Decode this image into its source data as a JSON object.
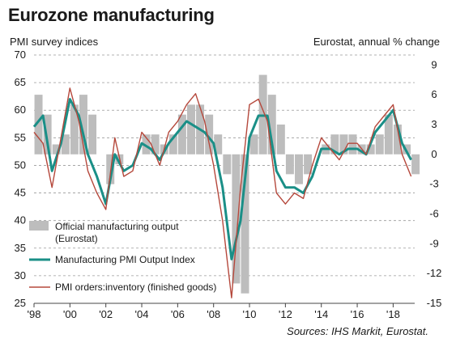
{
  "header": {
    "title": "Eurozone manufacturing",
    "left_axis_title": "PMI survey indices",
    "right_axis_title": "Eurostat, annual % change",
    "source": "Sources: IHS Markit, Eurostat."
  },
  "chart_data": {
    "type": "line",
    "x_range": [
      1998.0,
      2019.2
    ],
    "x_ticks": [
      "'98",
      "'00",
      "'02",
      "'04",
      "'06",
      "'08",
      "'10",
      "'12",
      "'14",
      "'16",
      "'18"
    ],
    "x_tick_values": [
      1998,
      2000,
      2002,
      2004,
      2006,
      2008,
      2010,
      2012,
      2014,
      2016,
      2018
    ],
    "y_left": {
      "ylim": [
        25,
        70
      ],
      "ticks": [
        25,
        30,
        35,
        40,
        45,
        50,
        55,
        60,
        65,
        70
      ]
    },
    "y_right": {
      "ylim": [
        -15,
        10
      ],
      "ticks": [
        -15,
        -12,
        -9,
        -6,
        -3,
        0,
        3,
        6,
        9
      ]
    },
    "grid": "horizontal, dashed",
    "legend_placement": "lower-left",
    "series": [
      {
        "name": "Official manufacturing output (Eurostat)",
        "style": "bar",
        "axis": "right",
        "color": "#bdbdbd",
        "x": [
          1998.0,
          1998.5,
          1999.0,
          1999.5,
          2000.0,
          2000.5,
          2001.0,
          2001.5,
          2002.0,
          2002.5,
          2003.0,
          2003.5,
          2004.0,
          2004.5,
          2005.0,
          2005.5,
          2006.0,
          2006.5,
          2007.0,
          2007.5,
          2008.0,
          2008.5,
          2009.0,
          2009.5,
          2010.0,
          2010.5,
          2011.0,
          2011.5,
          2012.0,
          2012.5,
          2013.0,
          2013.5,
          2014.0,
          2014.5,
          2015.0,
          2015.5,
          2016.0,
          2016.5,
          2017.0,
          2017.5,
          2018.0,
          2018.5,
          2019.0
        ],
        "values": [
          6,
          4,
          1,
          2,
          5,
          6,
          4,
          0,
          -3,
          -1,
          0,
          0,
          2,
          2,
          1,
          2,
          4,
          5,
          5,
          4,
          2,
          -2,
          -13,
          -14,
          2,
          8,
          6,
          3,
          -2,
          -3,
          -2,
          0,
          1,
          2,
          2,
          2,
          1,
          1,
          2,
          4,
          3,
          1,
          -2
        ]
      },
      {
        "name": "Manufacturing PMI Output Index",
        "style": "line",
        "axis": "left",
        "color": "#1a8f87",
        "x": [
          1998.0,
          1998.5,
          1999.0,
          1999.5,
          2000.0,
          2000.5,
          2001.0,
          2001.5,
          2002.0,
          2002.5,
          2003.0,
          2003.5,
          2004.0,
          2004.5,
          2005.0,
          2005.5,
          2006.0,
          2006.5,
          2007.0,
          2007.5,
          2008.0,
          2008.5,
          2009.0,
          2009.5,
          2010.0,
          2010.5,
          2011.0,
          2011.5,
          2012.0,
          2012.5,
          2013.0,
          2013.5,
          2014.0,
          2014.5,
          2015.0,
          2015.5,
          2016.0,
          2016.5,
          2017.0,
          2017.5,
          2018.0,
          2018.5,
          2019.0
        ],
        "values": [
          57,
          59,
          49,
          54,
          62,
          59,
          52,
          48,
          43,
          52,
          49,
          50,
          54,
          53,
          51,
          54,
          56,
          58,
          57,
          56,
          54,
          46,
          33,
          40,
          55,
          59,
          59,
          49,
          46,
          46,
          45,
          48,
          53,
          53,
          52,
          53,
          53,
          52,
          56,
          58,
          60,
          54,
          51
        ]
      },
      {
        "name": "PMI orders:inventory (finished goods)",
        "style": "line",
        "axis": "left",
        "color": "#b5483c",
        "x": [
          1998.0,
          1998.5,
          1999.0,
          1999.5,
          2000.0,
          2000.5,
          2001.0,
          2001.5,
          2002.0,
          2002.5,
          2003.0,
          2003.5,
          2004.0,
          2004.5,
          2005.0,
          2005.5,
          2006.0,
          2006.5,
          2007.0,
          2007.5,
          2008.0,
          2008.5,
          2009.0,
          2009.5,
          2010.0,
          2010.5,
          2011.0,
          2011.5,
          2012.0,
          2012.5,
          2013.0,
          2013.5,
          2014.0,
          2014.5,
          2015.0,
          2015.5,
          2016.0,
          2016.5,
          2017.0,
          2017.5,
          2018.0,
          2018.5,
          2019.0
        ],
        "values": [
          56,
          54,
          46,
          55,
          64,
          58,
          49,
          45,
          42,
          55,
          48,
          49,
          56,
          54,
          50,
          56,
          58,
          61,
          63,
          58,
          50,
          40,
          26,
          46,
          61,
          62,
          58,
          45,
          43,
          45,
          44,
          50,
          55,
          53,
          51,
          54,
          54,
          52,
          57,
          59,
          61,
          52,
          48
        ]
      }
    ]
  }
}
